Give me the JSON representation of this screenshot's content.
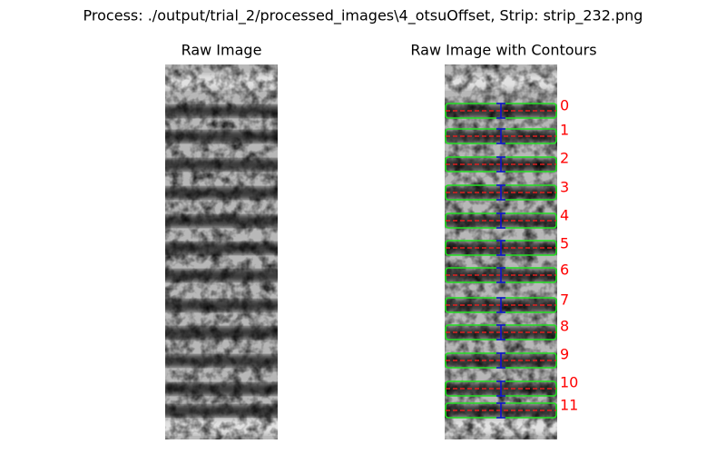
{
  "title": "Process: ./output/trial_2/processed_images\\4_otsuOffset, Strip: strip_232.png",
  "panels": [
    {
      "title": "Raw Image"
    },
    {
      "title": "Raw Image with Contours",
      "labels": [
        "0",
        "1",
        "2",
        "3",
        "4",
        "5",
        "6",
        "7",
        "8",
        "9",
        "10",
        "11"
      ]
    }
  ]
}
